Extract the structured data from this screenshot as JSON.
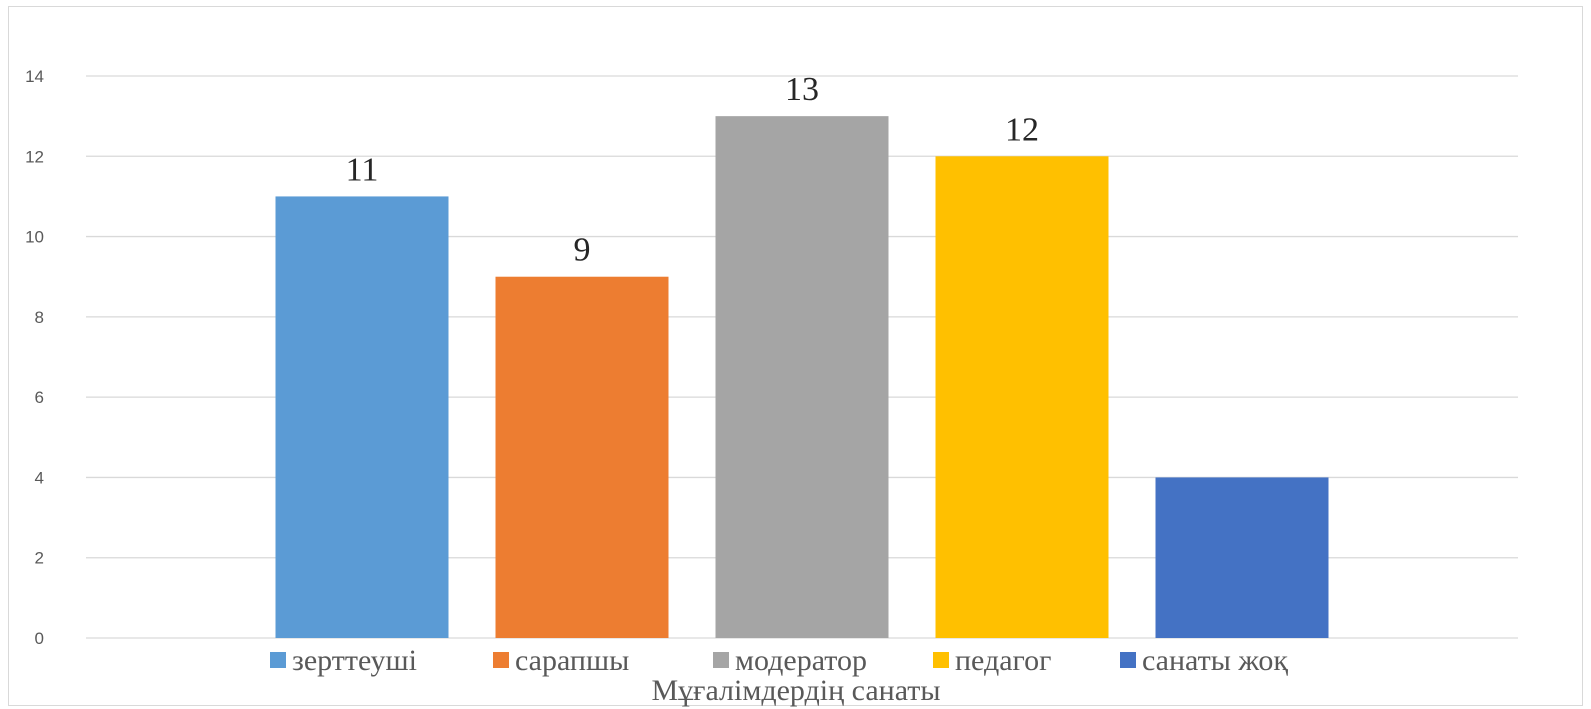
{
  "chart_data": {
    "type": "bar",
    "categories": [
      "зерттеуші",
      "сарапшы",
      "модератор",
      "педагог",
      "санаты жоқ"
    ],
    "values": [
      11,
      9,
      13,
      12,
      4
    ],
    "data_labels": [
      "11",
      "9",
      "13",
      "12",
      ""
    ],
    "colors": [
      "#5b9bd5",
      "#ed7d31",
      "#a5a5a5",
      "#ffc000",
      "#4472c4"
    ],
    "title": "",
    "xlabel": "Мұғалімдердің санаты",
    "ylabel": "",
    "ylim": [
      0,
      14
    ],
    "yticks": [
      "0",
      "2",
      "4",
      "6",
      "8",
      "10",
      "12",
      "14"
    ],
    "grid": true,
    "legend": "bottom"
  }
}
